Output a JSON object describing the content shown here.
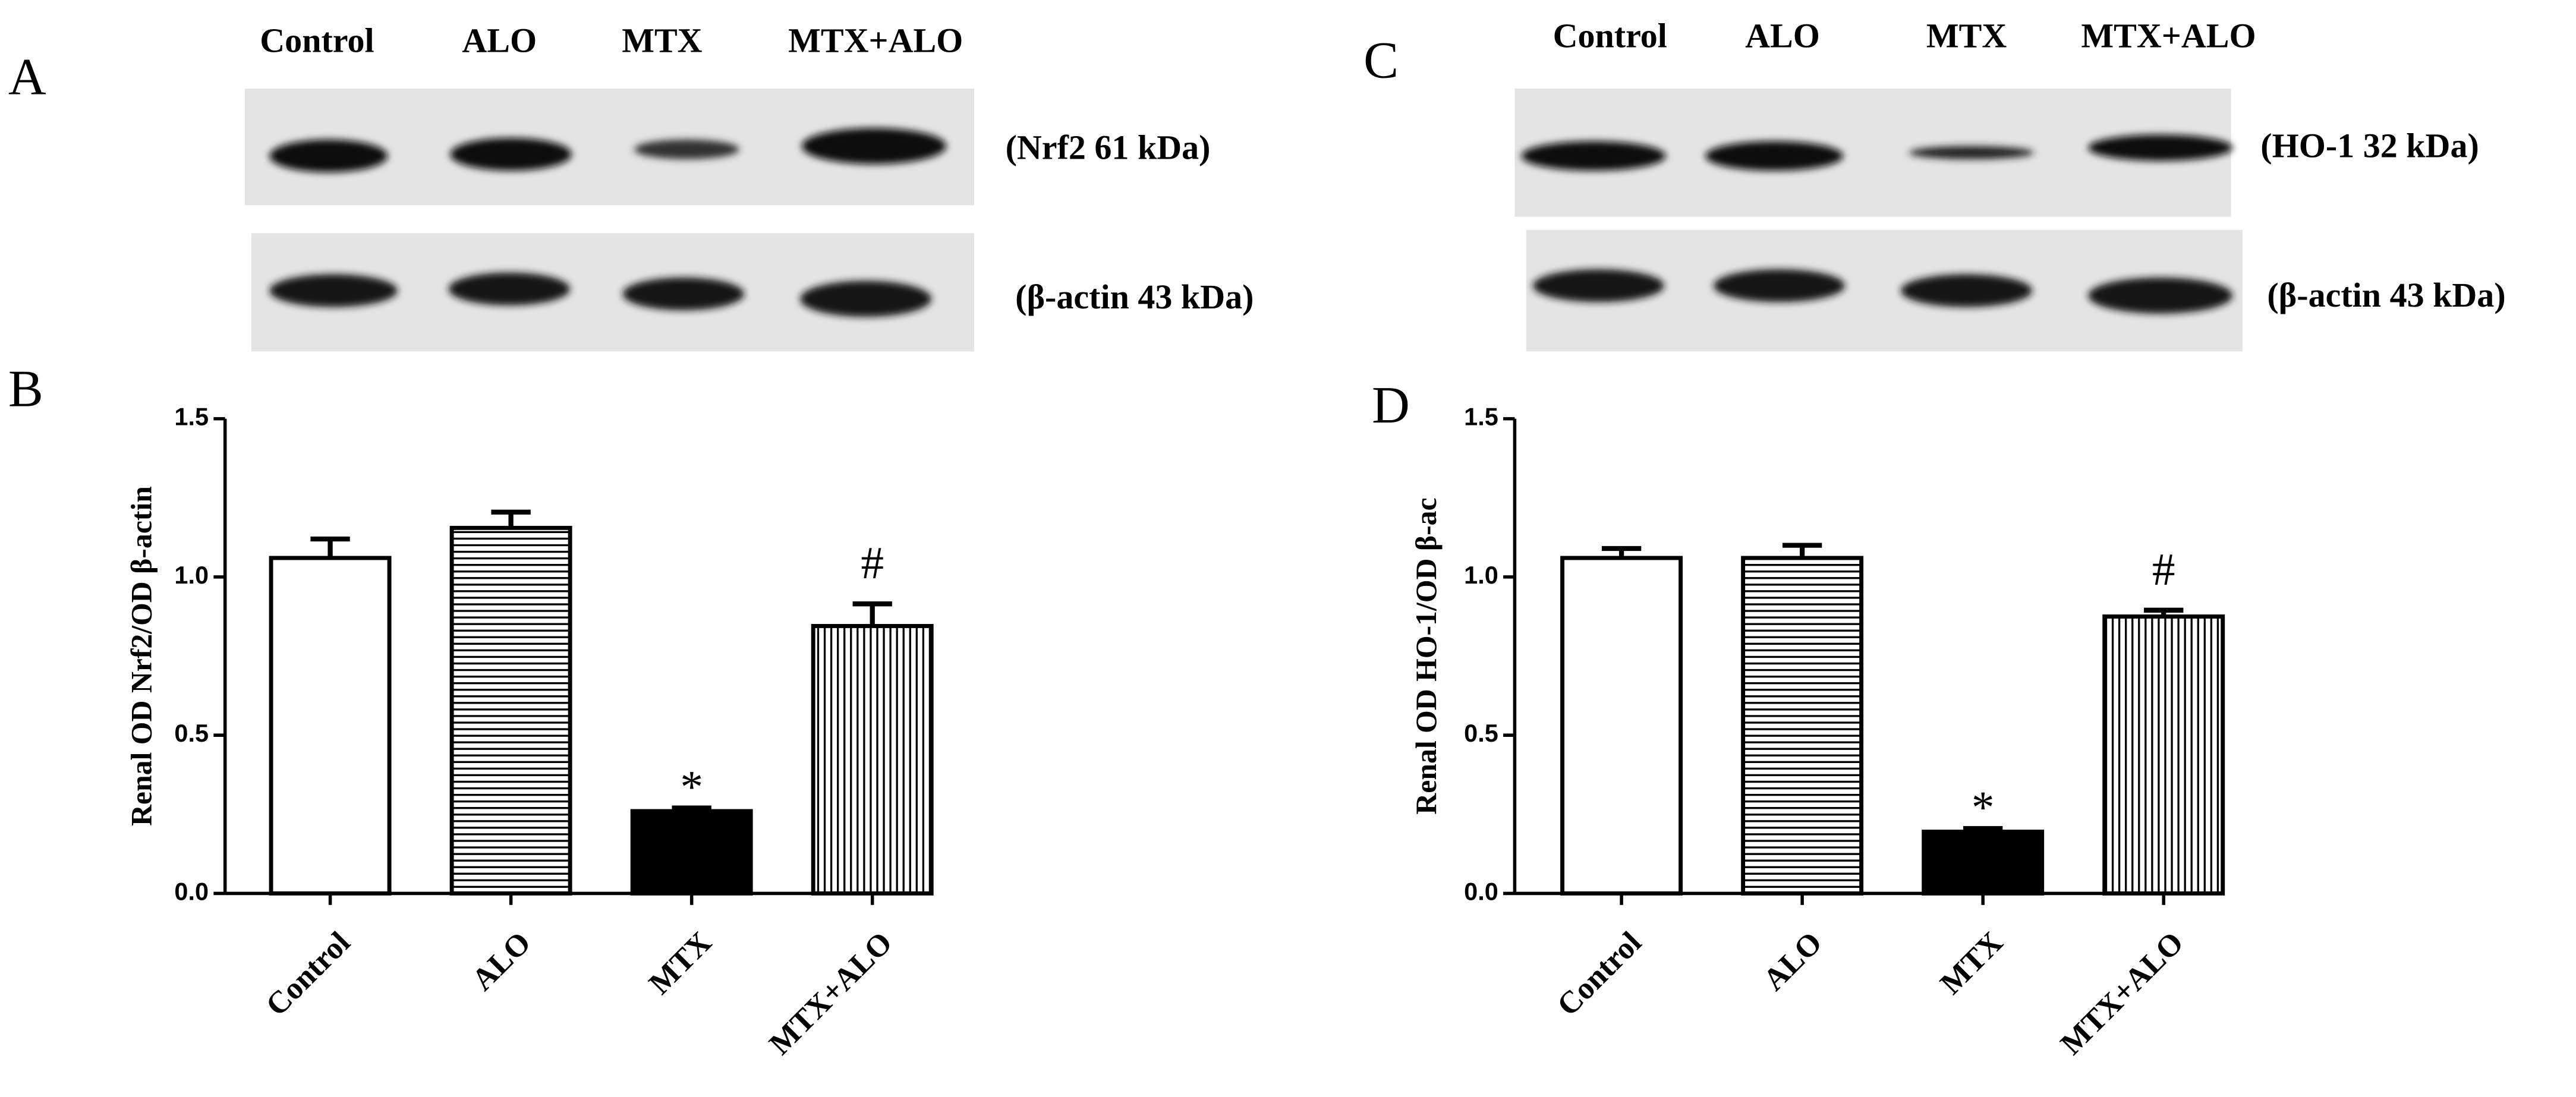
{
  "blots": [
    {
      "letter": "A",
      "lanes": [
        "Control",
        "ALO",
        "MTX",
        "MTX+ALO"
      ],
      "bands": [
        "(Nrf2 61 kDa)",
        "(β-actin 43 kDa)"
      ]
    },
    {
      "letter": "C",
      "lanes": [
        "Control",
        "ALO",
        "MTX",
        "MTX+ALO"
      ],
      "bands": [
        "(HO-1 32 kDa)",
        "(β-actin 43 kDa)"
      ]
    }
  ],
  "chart_data": [
    {
      "type": "bar",
      "letter": "B",
      "y_label": "Renal OD Nrf2/OD β-actin",
      "categories": [
        "Control",
        "ALO",
        "MTX",
        "MTX+ALO"
      ],
      "values": [
        1.06,
        1.155,
        0.26,
        0.845
      ],
      "errors": [
        0.06,
        0.05,
        0.01,
        0.07
      ],
      "bar_styles": [
        "open",
        "horizontal-hatch",
        "solid",
        "vertical-hatch"
      ],
      "color": "#000000",
      "annotations": [
        {
          "category": "MTX",
          "text": "*"
        },
        {
          "category": "MTX+ALO",
          "text": "#"
        }
      ],
      "ylim": [
        0,
        1.5
      ],
      "yticks": [
        {
          "value": 0,
          "label": "0.0"
        },
        0.5,
        {
          "value": 1,
          "label": "1.0"
        },
        {
          "value": 1.5,
          "label": "1.5"
        }
      ]
    },
    {
      "type": "bar",
      "letter": "D",
      "y_label": "Renal OD HO-1/OD β-ac",
      "categories": [
        "Control",
        "ALO",
        "MTX",
        "MTX+ALO"
      ],
      "values": [
        1.06,
        1.06,
        0.195,
        0.875
      ],
      "errors": [
        0.03,
        0.04,
        0.01,
        0.02
      ],
      "bar_styles": [
        "open",
        "horizontal-hatch",
        "solid",
        "vertical-hatch"
      ],
      "color": "#000000",
      "annotations": [
        {
          "category": "MTX",
          "text": "*"
        },
        {
          "category": "MTX+ALO",
          "text": "#"
        }
      ],
      "ylim": [
        0,
        1.5
      ],
      "yticks": [
        {
          "value": 0,
          "label": "0.0"
        },
        0.5,
        {
          "value": 1,
          "label": "1.0"
        },
        {
          "value": 1.5,
          "label": "1.5"
        }
      ]
    }
  ]
}
